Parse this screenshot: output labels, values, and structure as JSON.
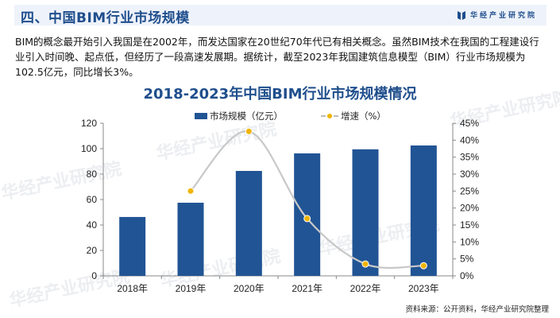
{
  "header": {
    "title": "四、中国BIM行业市场规模",
    "brand": "华经产业研究院"
  },
  "intro": {
    "text": "BIM的概念最开始引入我国是在2002年，而发达国家在20世纪70年代已有相关概念。虽然BIM技术在我国的工程建设行业引入时间晚、起点低，但经历了一段高速发展期。据统计，截至2023年我国建筑信息模型（BIM）行业市场规模为102.5亿元，同比增长3%。"
  },
  "watermark": "华经产业研究院",
  "source": "资料来源：公开资料，华经产业研究院整理",
  "colors": {
    "bar": "#215494",
    "line": "#c8c8c8",
    "marker": "#f0b400",
    "title": "#1f4e8c"
  },
  "chart_data": {
    "type": "bar",
    "title": "2018-2023年中国BIM行业市场规模情况",
    "categories": [
      "2018年",
      "2019年",
      "2020年",
      "2021年",
      "2022年",
      "2023年"
    ],
    "series": [
      {
        "name": "市场规模（亿元）",
        "type": "bar",
        "axis": "left",
        "values": [
          46.3,
          57.5,
          82.5,
          96.3,
          99.5,
          102.5
        ]
      },
      {
        "name": "增速（%）",
        "type": "line",
        "axis": "right",
        "values": [
          null,
          25.0,
          42.6,
          16.9,
          3.5,
          3.0
        ]
      }
    ],
    "xlabel": "",
    "ylabel": "",
    "ylim": [
      0,
      120
    ],
    "yticks": [
      0,
      20,
      40,
      60,
      80,
      100,
      120
    ],
    "y2lim": [
      0,
      45
    ],
    "y2ticks": [
      "0%",
      "5%",
      "10%",
      "15%",
      "20%",
      "25%",
      "30%",
      "35%",
      "40%",
      "45%"
    ],
    "legend_position": "top",
    "grid": false
  }
}
